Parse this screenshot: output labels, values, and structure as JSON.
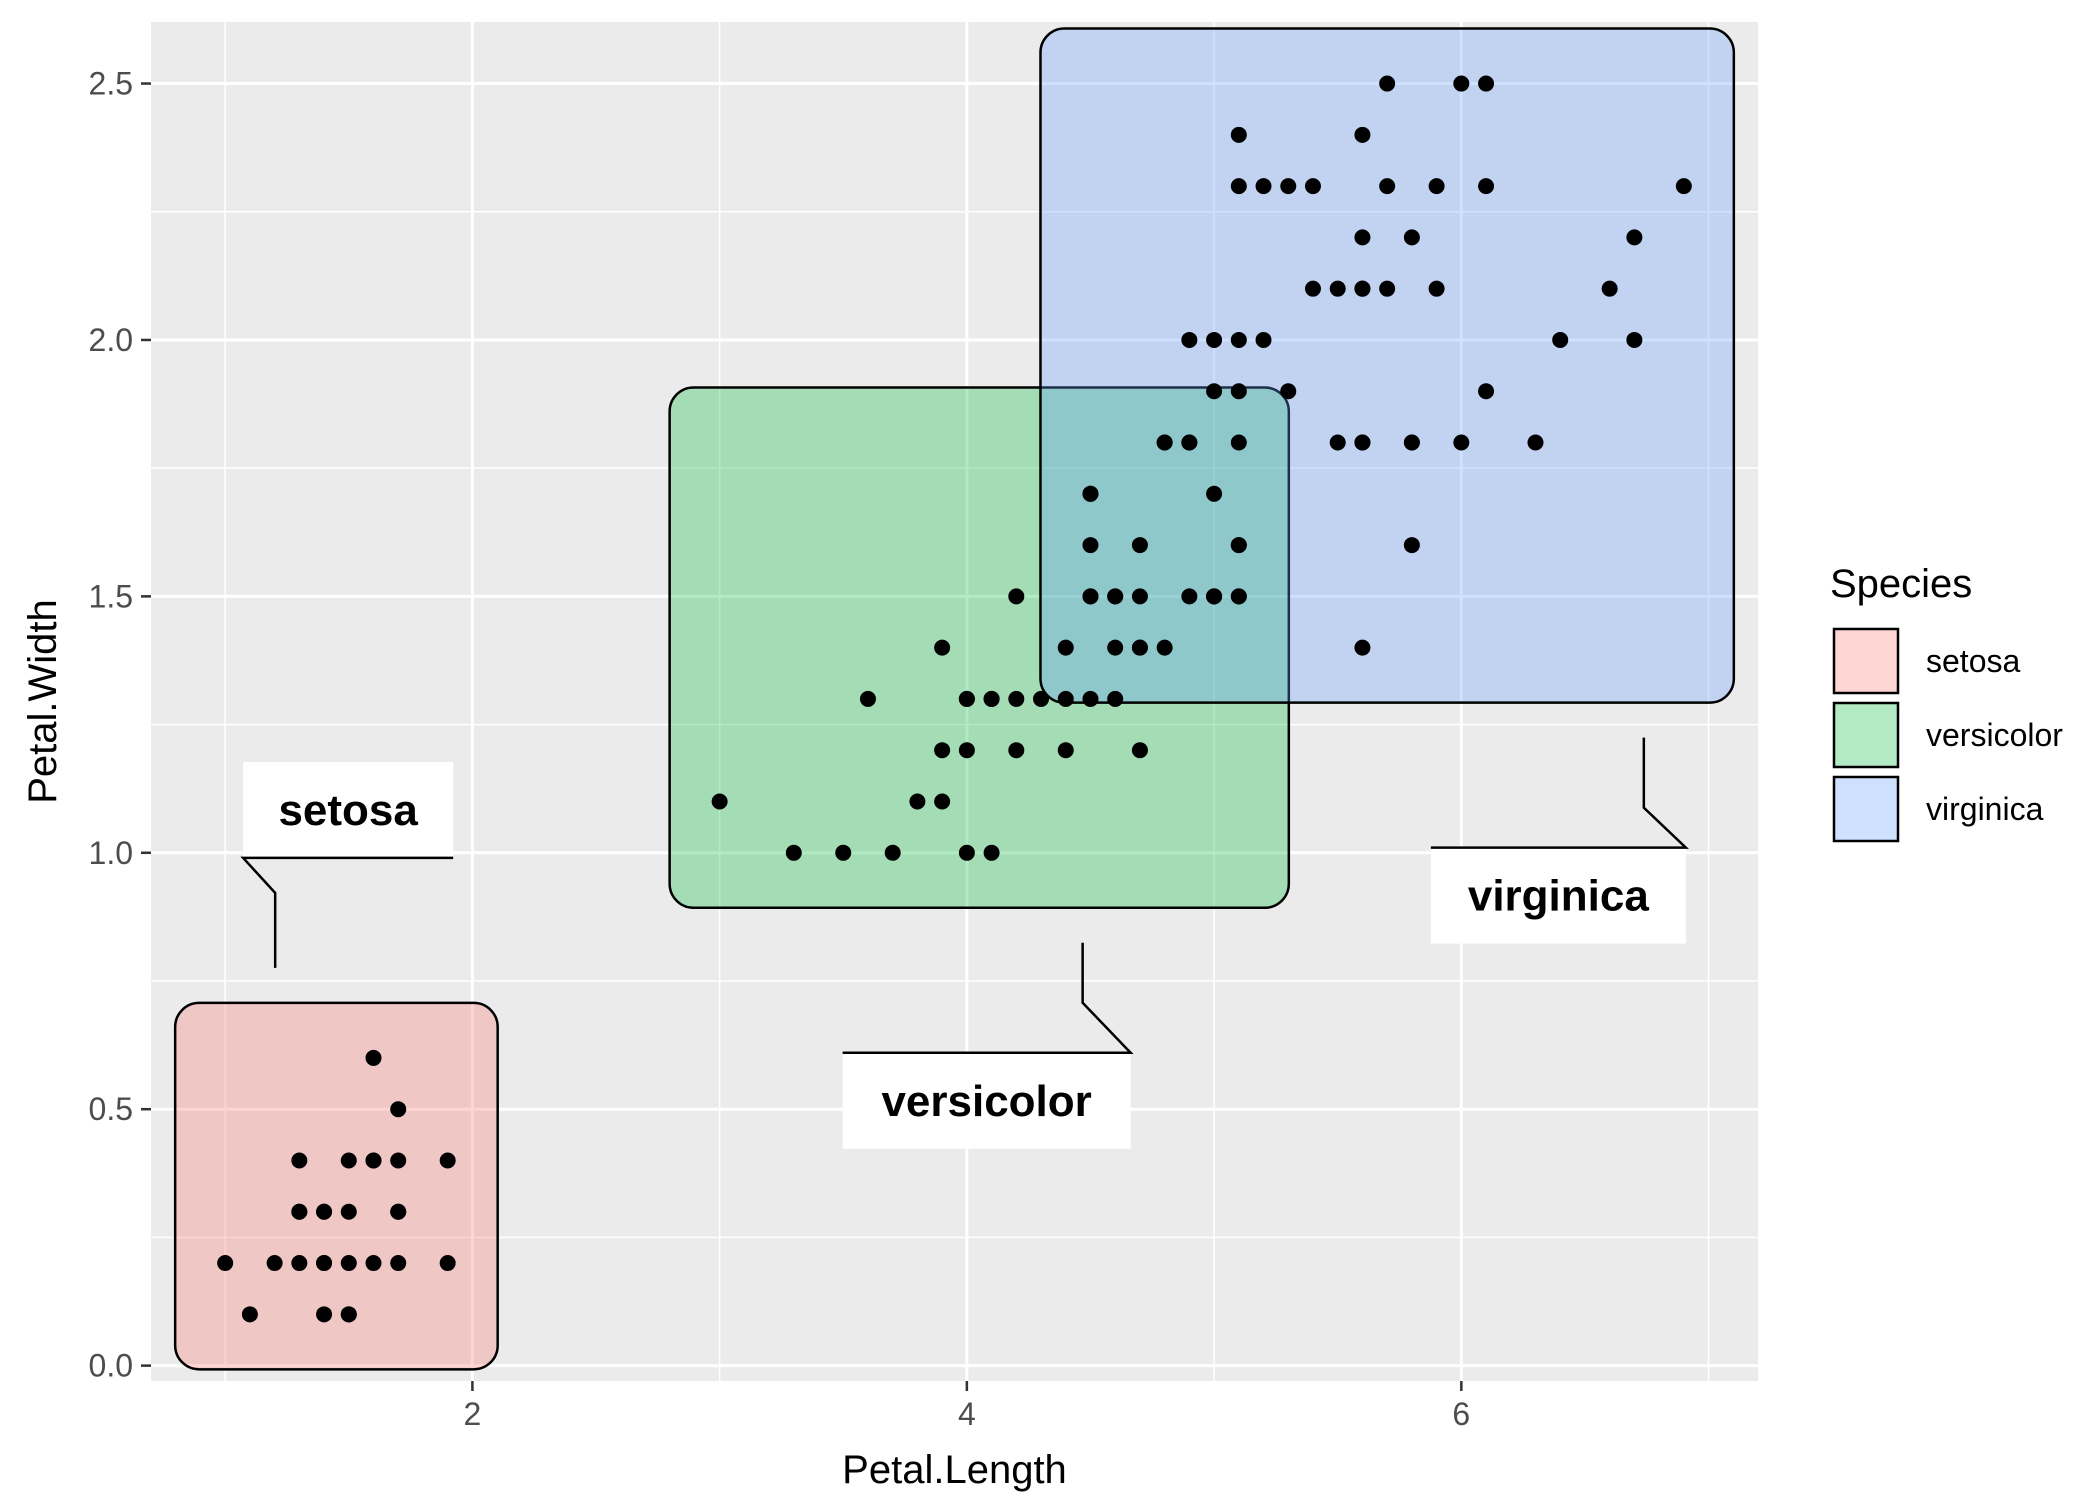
{
  "chart_data": {
    "type": "scatter",
    "xlabel": "Petal.Length",
    "ylabel": "Petal.Width",
    "xlim": [
      0.7,
      7.2
    ],
    "ylim": [
      -0.03,
      2.62
    ],
    "x_ticks": [
      2,
      4,
      6
    ],
    "x_tick_labels": [
      "2",
      "4",
      "6"
    ],
    "y_ticks": [
      0.0,
      0.5,
      1.0,
      1.5,
      2.0,
      2.5
    ],
    "y_tick_labels": [
      "0.0",
      "0.5",
      "1.0",
      "1.5",
      "2.0",
      "2.5"
    ],
    "grid": true,
    "legend": {
      "title": "Species",
      "placement": "right",
      "entries": [
        "setosa",
        "versicolor",
        "virginica"
      ]
    },
    "colors": {
      "panel": "#EBEBEB",
      "grid": "#FFFFFF",
      "points": "#000000",
      "setosa": "#F8766D",
      "versicolor": "#00BA38",
      "virginica": "#619CFF"
    },
    "series": [
      {
        "name": "setosa",
        "x": [
          1.0,
          1.1,
          1.2,
          1.3,
          1.4,
          1.5,
          1.6,
          1.7,
          1.9,
          1.3,
          1.4,
          1.5,
          1.6,
          1.7,
          1.9,
          1.3,
          1.4,
          1.5,
          1.6,
          1.7,
          1.3,
          1.4,
          1.5,
          1.7,
          1.6,
          1.5,
          1.7,
          1.4
        ],
        "y": [
          0.2,
          0.1,
          0.2,
          0.2,
          0.2,
          0.2,
          0.2,
          0.2,
          0.2,
          0.3,
          0.3,
          0.3,
          0.4,
          0.4,
          0.4,
          0.4,
          0.3,
          0.4,
          0.4,
          0.3,
          0.3,
          0.2,
          0.1,
          0.5,
          0.6,
          0.1,
          0.3,
          0.1
        ]
      },
      {
        "name": "versicolor",
        "x": [
          3.0,
          3.3,
          3.5,
          3.7,
          3.8,
          3.9,
          3.9,
          3.9,
          3.6,
          4.0,
          4.0,
          4.0,
          4.1,
          4.1,
          4.2,
          4.2,
          4.3,
          4.4,
          4.4,
          4.4,
          4.5,
          4.5,
          4.5,
          4.5,
          4.5,
          4.6,
          4.6,
          4.6,
          4.7,
          4.7,
          4.7,
          4.7,
          4.7,
          4.8,
          4.8,
          4.9,
          4.9,
          5.0,
          5.0,
          5.1,
          5.1,
          4.6,
          4.2,
          4.1,
          4.0
        ],
        "y": [
          1.1,
          1.0,
          1.0,
          1.0,
          1.1,
          1.1,
          1.2,
          1.4,
          1.3,
          1.0,
          1.2,
          1.3,
          1.0,
          1.3,
          1.2,
          1.3,
          1.3,
          1.2,
          1.3,
          1.4,
          1.3,
          1.5,
          1.6,
          1.7,
          1.5,
          1.3,
          1.4,
          1.5,
          1.2,
          1.4,
          1.5,
          1.6,
          1.4,
          1.8,
          1.4,
          1.5,
          1.8,
          1.7,
          1.5,
          1.6,
          1.5,
          1.5,
          1.5,
          1.3,
          1.3
        ]
      },
      {
        "name": "virginica",
        "x": [
          4.5,
          4.8,
          4.9,
          4.9,
          5.0,
          5.0,
          5.0,
          5.1,
          5.1,
          5.1,
          5.1,
          5.1,
          5.1,
          5.2,
          5.2,
          5.3,
          5.3,
          5.4,
          5.4,
          5.5,
          5.5,
          5.6,
          5.6,
          5.6,
          5.6,
          5.6,
          5.6,
          5.7,
          5.7,
          5.7,
          5.8,
          5.8,
          5.8,
          5.8,
          5.9,
          5.9,
          6.0,
          6.0,
          6.1,
          6.1,
          6.1,
          6.3,
          6.4,
          6.6,
          6.7,
          6.7,
          6.9,
          5.0,
          5.1,
          5.6
        ],
        "y": [
          1.7,
          1.8,
          1.8,
          2.0,
          1.9,
          2.0,
          1.5,
          1.9,
          2.0,
          2.3,
          2.4,
          1.8,
          1.5,
          2.0,
          2.3,
          1.9,
          2.3,
          2.1,
          2.3,
          2.1,
          1.8,
          2.1,
          2.2,
          2.4,
          1.8,
          1.4,
          2.1,
          2.1,
          2.3,
          2.5,
          1.8,
          2.2,
          1.6,
          1.8,
          2.1,
          2.3,
          2.5,
          1.8,
          2.3,
          1.9,
          2.5,
          1.8,
          2.0,
          2.1,
          2.2,
          2.0,
          2.3,
          1.5,
          1.6,
          1.8
        ]
      }
    ],
    "annotations": [
      {
        "label": "setosa"
      },
      {
        "label": "versicolor"
      },
      {
        "label": "virginica"
      }
    ]
  }
}
